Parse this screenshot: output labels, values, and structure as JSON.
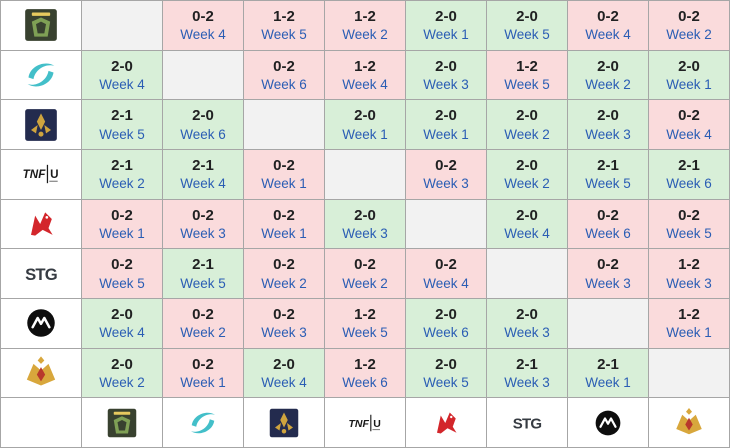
{
  "colors": {
    "win_bg": "#d8efd8",
    "loss_bg": "#fadbdc",
    "self_bg": "#f2f2f2",
    "line": "#a6a6a6",
    "score_text": "#202122",
    "week_text": "#2a5db4"
  },
  "teams": [
    {
      "id": "team-1",
      "icon": "dark-green-badge-logo",
      "colors": {
        "primary": "#38412f",
        "secondary": "#7fa055",
        "accent": "#e6c95f"
      }
    },
    {
      "id": "team-2",
      "icon": "teal-swirl-logo",
      "colors": {
        "primary": "#43bfc9"
      }
    },
    {
      "id": "team-3",
      "icon": "navy-gold-crest-logo",
      "colors": {
        "primary": "#232b4e",
        "secondary": "#cfa43e"
      }
    },
    {
      "id": "team-4",
      "icon": "black-wordmark-logo",
      "colors": {
        "primary": "#1a1a1a"
      },
      "wordmark": "TNF",
      "wordmark2": "U"
    },
    {
      "id": "team-5",
      "icon": "red-dragon-logo",
      "colors": {
        "primary": "#d3262b"
      }
    },
    {
      "id": "team-6",
      "icon": "dark-monogram-logo",
      "colors": {
        "primary": "#363b42"
      },
      "monogram": "STG"
    },
    {
      "id": "team-7",
      "icon": "black-circle-peaks-logo",
      "colors": {
        "primary": "#0e0e0e",
        "secondary": "#ffffff"
      }
    },
    {
      "id": "team-8",
      "icon": "gold-red-crest-logo",
      "colors": {
        "primary": "#d8a73c",
        "secondary": "#b8382c"
      }
    }
  ],
  "grid": {
    "rows": [
      {
        "team": "team-1",
        "cells": [
          null,
          {
            "score": "0-2",
            "week": "Week 4",
            "result": "loss"
          },
          {
            "score": "1-2",
            "week": "Week 5",
            "result": "loss"
          },
          {
            "score": "1-2",
            "week": "Week 2",
            "result": "loss"
          },
          {
            "score": "2-0",
            "week": "Week 1",
            "result": "win"
          },
          {
            "score": "2-0",
            "week": "Week 5",
            "result": "win"
          },
          {
            "score": "0-2",
            "week": "Week 4",
            "result": "loss"
          },
          {
            "score": "0-2",
            "week": "Week 2",
            "result": "loss"
          }
        ]
      },
      {
        "team": "team-2",
        "cells": [
          {
            "score": "2-0",
            "week": "Week 4",
            "result": "win"
          },
          null,
          {
            "score": "0-2",
            "week": "Week 6",
            "result": "loss"
          },
          {
            "score": "1-2",
            "week": "Week 4",
            "result": "loss"
          },
          {
            "score": "2-0",
            "week": "Week 3",
            "result": "win"
          },
          {
            "score": "1-2",
            "week": "Week 5",
            "result": "loss"
          },
          {
            "score": "2-0",
            "week": "Week 2",
            "result": "win"
          },
          {
            "score": "2-0",
            "week": "Week 1",
            "result": "win"
          }
        ]
      },
      {
        "team": "team-3",
        "cells": [
          {
            "score": "2-1",
            "week": "Week 5",
            "result": "win"
          },
          {
            "score": "2-0",
            "week": "Week 6",
            "result": "win"
          },
          null,
          {
            "score": "2-0",
            "week": "Week 1",
            "result": "win"
          },
          {
            "score": "2-0",
            "week": "Week 1",
            "result": "win"
          },
          {
            "score": "2-0",
            "week": "Week 2",
            "result": "win"
          },
          {
            "score": "2-0",
            "week": "Week 3",
            "result": "win"
          },
          {
            "score": "0-2",
            "week": "Week 4",
            "result": "loss"
          }
        ]
      },
      {
        "team": "team-4",
        "cells": [
          {
            "score": "2-1",
            "week": "Week 2",
            "result": "win"
          },
          {
            "score": "2-1",
            "week": "Week 4",
            "result": "win"
          },
          {
            "score": "0-2",
            "week": "Week 1",
            "result": "loss"
          },
          null,
          {
            "score": "0-2",
            "week": "Week 3",
            "result": "loss"
          },
          {
            "score": "2-0",
            "week": "Week 2",
            "result": "win"
          },
          {
            "score": "2-1",
            "week": "Week 5",
            "result": "win"
          },
          {
            "score": "2-1",
            "week": "Week 6",
            "result": "win"
          }
        ]
      },
      {
        "team": "team-5",
        "cells": [
          {
            "score": "0-2",
            "week": "Week 1",
            "result": "loss"
          },
          {
            "score": "0-2",
            "week": "Week 3",
            "result": "loss"
          },
          {
            "score": "0-2",
            "week": "Week 1",
            "result": "loss"
          },
          {
            "score": "2-0",
            "week": "Week 3",
            "result": "win"
          },
          null,
          {
            "score": "2-0",
            "week": "Week 4",
            "result": "win"
          },
          {
            "score": "0-2",
            "week": "Week 6",
            "result": "loss"
          },
          {
            "score": "0-2",
            "week": "Week 5",
            "result": "loss"
          }
        ]
      },
      {
        "team": "team-6",
        "cells": [
          {
            "score": "0-2",
            "week": "Week 5",
            "result": "loss"
          },
          {
            "score": "2-1",
            "week": "Week 5",
            "result": "win"
          },
          {
            "score": "0-2",
            "week": "Week 2",
            "result": "loss"
          },
          {
            "score": "0-2",
            "week": "Week 2",
            "result": "loss"
          },
          {
            "score": "0-2",
            "week": "Week 4",
            "result": "loss"
          },
          null,
          {
            "score": "0-2",
            "week": "Week 3",
            "result": "loss"
          },
          {
            "score": "1-2",
            "week": "Week 3",
            "result": "loss"
          }
        ]
      },
      {
        "team": "team-7",
        "cells": [
          {
            "score": "2-0",
            "week": "Week 4",
            "result": "win"
          },
          {
            "score": "0-2",
            "week": "Week 2",
            "result": "loss"
          },
          {
            "score": "0-2",
            "week": "Week 3",
            "result": "loss"
          },
          {
            "score": "1-2",
            "week": "Week 5",
            "result": "loss"
          },
          {
            "score": "2-0",
            "week": "Week 6",
            "result": "win"
          },
          {
            "score": "2-0",
            "week": "Week 3",
            "result": "win"
          },
          null,
          {
            "score": "1-2",
            "week": "Week 1",
            "result": "loss"
          }
        ]
      },
      {
        "team": "team-8",
        "cells": [
          {
            "score": "2-0",
            "week": "Week 2",
            "result": "win"
          },
          {
            "score": "0-2",
            "week": "Week 1",
            "result": "loss"
          },
          {
            "score": "2-0",
            "week": "Week 4",
            "result": "win"
          },
          {
            "score": "1-2",
            "week": "Week 6",
            "result": "loss"
          },
          {
            "score": "2-0",
            "week": "Week 5",
            "result": "win"
          },
          {
            "score": "2-1",
            "week": "Week 3",
            "result": "win"
          },
          {
            "score": "2-1",
            "week": "Week 1",
            "result": "win"
          },
          null
        ]
      }
    ]
  }
}
